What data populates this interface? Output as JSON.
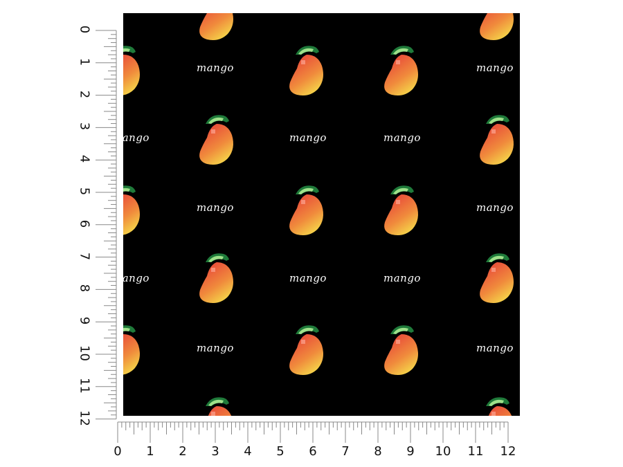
{
  "pattern": {
    "word": "mango",
    "background": "#000000",
    "text_color": "#ffffff",
    "fruit_colors": {
      "red": "#e84a3a",
      "orange": "#f08a3c",
      "yellow": "#f5d94a",
      "leaf_dark": "#1f7a3a",
      "leaf_light": "#9fe08a"
    }
  },
  "rulers": {
    "vertical_labels": [
      "0",
      "1",
      "2",
      "3",
      "4",
      "5",
      "6",
      "7",
      "8",
      "9",
      "10",
      "11",
      "12"
    ],
    "horizontal_labels": [
      "0",
      "1",
      "2",
      "3",
      "4",
      "5",
      "6",
      "7",
      "8",
      "9",
      "10",
      "11",
      "12"
    ]
  }
}
